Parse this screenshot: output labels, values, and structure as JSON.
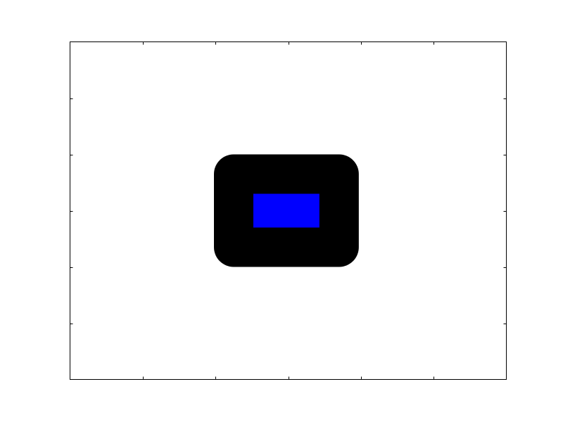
{
  "chart_data": {
    "type": "rectangle-patch",
    "title": "",
    "xlabel": "",
    "ylabel": "",
    "xlim": [
      0,
      6
    ],
    "ylim": [
      0,
      6
    ],
    "xticks": [
      1,
      2,
      3,
      4,
      5
    ],
    "yticks": [
      1,
      2,
      3,
      4,
      5
    ],
    "tick_labels_visible": false,
    "grid": false,
    "patch": {
      "x": 2.25,
      "y": 2.35,
      "width": 1.45,
      "height": 1.3,
      "facecolor": "#0000ff",
      "edgecolor": "#000000",
      "edge_style": "thick rounded-join outline"
    }
  }
}
